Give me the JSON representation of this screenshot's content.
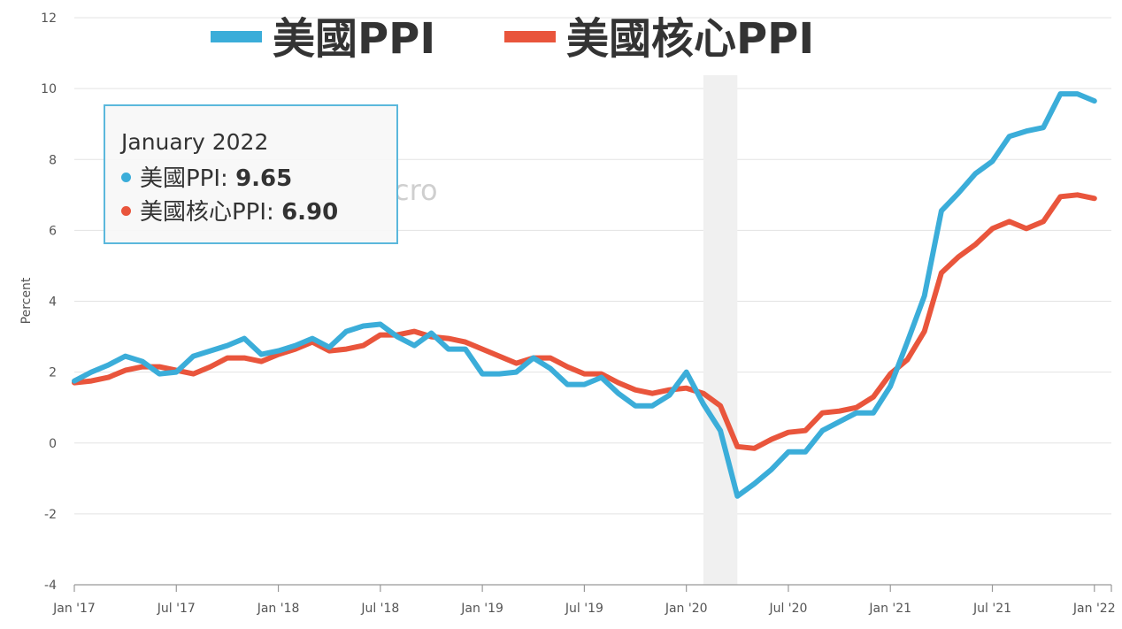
{
  "chart_data": {
    "type": "line",
    "title": "",
    "xlabel": "",
    "ylabel": "Percent",
    "ylim": [
      -4,
      12
    ],
    "yticks": [
      -4,
      -2,
      0,
      2,
      4,
      6,
      8,
      10,
      12
    ],
    "x_range": [
      "2017-01",
      "2022-02"
    ],
    "x_ticks": [
      {
        "month": "2017-01",
        "label": "Jan '17"
      },
      {
        "month": "2017-07",
        "label": "Jul '17"
      },
      {
        "month": "2018-01",
        "label": "Jan '18"
      },
      {
        "month": "2018-07",
        "label": "Jul '18"
      },
      {
        "month": "2019-01",
        "label": "Jan '19"
      },
      {
        "month": "2019-07",
        "label": "Jul '19"
      },
      {
        "month": "2020-01",
        "label": "Jan '20"
      },
      {
        "month": "2020-07",
        "label": "Jul '20"
      },
      {
        "month": "2021-01",
        "label": "Jan '21"
      },
      {
        "month": "2021-07",
        "label": "Jul '21"
      },
      {
        "month": "2022-01",
        "label": "Jan '22"
      }
    ],
    "shaded_region": {
      "from": "2020-02",
      "to": "2020-04",
      "color": "#f0f0f0"
    },
    "grid": true,
    "legend_position": "top",
    "watermark": "cro",
    "series": [
      {
        "name": "美國PPI",
        "color": "#3badd9",
        "start": "2017-01",
        "values": [
          1.75,
          2.0,
          2.2,
          2.45,
          2.3,
          1.95,
          2.0,
          2.45,
          2.6,
          2.75,
          2.95,
          2.5,
          2.6,
          2.75,
          2.95,
          2.7,
          3.15,
          3.3,
          3.35,
          3.0,
          2.75,
          3.1,
          2.65,
          2.65,
          1.95,
          1.95,
          2.0,
          2.4,
          2.1,
          1.65,
          1.65,
          1.85,
          1.4,
          1.05,
          1.05,
          1.35,
          2.0,
          1.1,
          0.35,
          -1.5,
          -1.15,
          -0.75,
          -0.25,
          -0.25,
          0.35,
          0.6,
          0.85,
          0.85,
          1.6,
          2.85,
          4.15,
          6.55,
          7.05,
          7.6,
          7.95,
          8.65,
          8.8,
          8.9,
          9.85,
          9.85,
          9.65
        ]
      },
      {
        "name": "美國核心PPI",
        "color": "#e9553c",
        "start": "2017-01",
        "values": [
          1.7,
          1.75,
          1.85,
          2.05,
          2.15,
          2.15,
          2.05,
          1.95,
          2.15,
          2.4,
          2.4,
          2.3,
          2.5,
          2.65,
          2.85,
          2.6,
          2.65,
          2.75,
          3.05,
          3.05,
          3.15,
          3.0,
          2.95,
          2.85,
          2.65,
          2.45,
          2.25,
          2.4,
          2.4,
          2.15,
          1.95,
          1.95,
          1.7,
          1.5,
          1.4,
          1.5,
          1.55,
          1.4,
          1.05,
          -0.1,
          -0.15,
          0.1,
          0.3,
          0.35,
          0.85,
          0.9,
          1.0,
          1.3,
          1.95,
          2.35,
          3.15,
          4.8,
          5.25,
          5.6,
          6.05,
          6.25,
          6.05,
          6.25,
          6.95,
          7.0,
          6.9
        ]
      }
    ]
  },
  "tooltip": {
    "date": "January 2022",
    "rows": [
      {
        "label": "美國PPI:",
        "value": "9.65",
        "color": "#3badd9"
      },
      {
        "label": "美國核心PPI:",
        "value": "6.90",
        "color": "#e9553c"
      }
    ]
  }
}
